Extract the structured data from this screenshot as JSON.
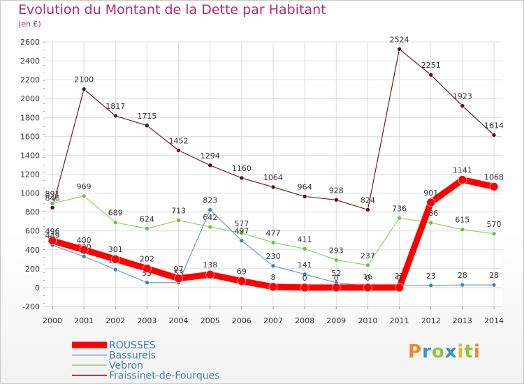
{
  "chart_data": {
    "type": "line",
    "title": "Evolution du Montant de la Dette par Habitant",
    "subtitle": "(en €)",
    "categories": [
      "2000",
      "2001",
      "2002",
      "2003",
      "2004",
      "2005",
      "2006",
      "2007",
      "2008",
      "2009",
      "2010",
      "2011",
      "2012",
      "2013",
      "2014"
    ],
    "ylim": [
      -200,
      2600
    ],
    "yticks": [
      -200,
      0,
      200,
      400,
      600,
      800,
      1000,
      1200,
      1400,
      1600,
      1800,
      2000,
      2200,
      2400,
      2600
    ],
    "grid": true,
    "legend_position": "bottom-left",
    "series": [
      {
        "name": "Fraissinet-de-Fourques",
        "color": "#6d1d1d",
        "point_color": "#5a0f0f",
        "width": 1.2,
        "radius": 3,
        "values": [
          846,
          2100,
          1817,
          1715,
          1452,
          1294,
          1160,
          1064,
          964,
          928,
          824,
          2524,
          2251,
          1923,
          1614
        ],
        "labels": [
          "846",
          "2100",
          "1817",
          "1715",
          "1452",
          "1294",
          "1160",
          "1064",
          "964",
          "928",
          "824",
          "2524",
          "2251",
          "1923",
          "1614"
        ]
      },
      {
        "name": "Vebron",
        "color": "#8ed16b",
        "point_color": "#6cc23a",
        "width": 1.2,
        "radius": 3,
        "values": [
          891,
          969,
          689,
          624,
          713,
          642,
          577,
          477,
          411,
          293,
          237,
          736,
          686,
          615,
          570
        ],
        "labels": [
          "891",
          "969",
          "689",
          "624",
          "713",
          "642",
          "577",
          "477",
          "411",
          "293",
          "237",
          "736",
          "686",
          "615",
          "570"
        ]
      },
      {
        "name": "Bassurels",
        "color": "#6b9fcb",
        "point_color": "#3f7fbf",
        "width": 1.2,
        "radius": 3,
        "values": [
          449,
          330,
          191,
          53,
          53,
          823,
          497,
          230,
          141,
          52,
          16,
          22,
          23,
          28,
          28
        ],
        "labels": [
          "449",
          "330",
          "191",
          "53",
          "53",
          "823",
          "497",
          "230",
          "141",
          "52",
          "16",
          "22",
          "23",
          "28",
          "28"
        ]
      },
      {
        "name": "ROUSSES",
        "color": "#ff0000",
        "point_color": "#ff0000",
        "width": 9,
        "radius": 6,
        "values": [
          496,
          400,
          301,
          202,
          97,
          138,
          69,
          8,
          0,
          0,
          0,
          0,
          901,
          1141,
          1068
        ],
        "labels": [
          "496",
          "400",
          "301",
          "202",
          "97",
          "138",
          "69",
          "8",
          "0",
          "0",
          "0",
          "0",
          "901",
          "1141",
          "1068"
        ]
      }
    ],
    "legend_order": [
      "ROUSSES",
      "Bassurels",
      "Vebron",
      "Fraissinet-de-Fourques"
    ]
  },
  "logo": "Proxiti"
}
